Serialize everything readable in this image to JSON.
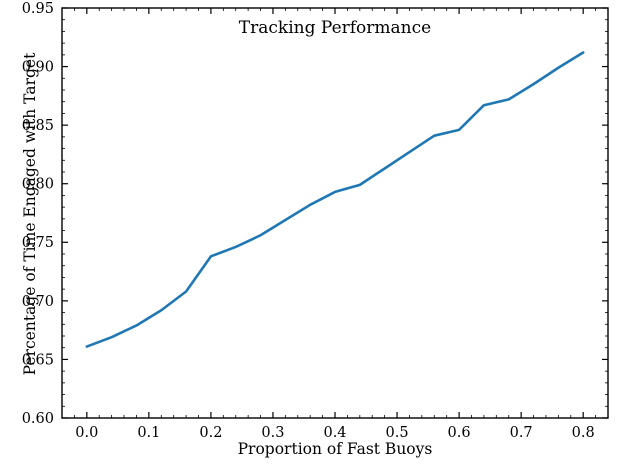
{
  "chart_data": {
    "type": "line",
    "title": "Tracking Performance",
    "xlabel": "Proportion of Fast Buoys",
    "ylabel": "Percentage of Time Engaged with Target",
    "x": [
      0.0,
      0.04,
      0.08,
      0.12,
      0.16,
      0.2,
      0.24,
      0.28,
      0.32,
      0.36,
      0.4,
      0.44,
      0.48,
      0.52,
      0.56,
      0.6,
      0.64,
      0.68,
      0.72,
      0.76,
      0.8
    ],
    "y": [
      0.661,
      0.669,
      0.679,
      0.692,
      0.708,
      0.738,
      0.746,
      0.756,
      0.769,
      0.782,
      0.793,
      0.799,
      0.813,
      0.827,
      0.841,
      0.846,
      0.867,
      0.872,
      0.885,
      0.899,
      0.912
    ],
    "x_ticks": [
      0.0,
      0.1,
      0.2,
      0.3,
      0.4,
      0.5,
      0.6,
      0.7,
      0.8
    ],
    "y_ticks": [
      0.6,
      0.65,
      0.7,
      0.75,
      0.8,
      0.85,
      0.9,
      0.95
    ],
    "xlim": [
      -0.04,
      0.84
    ],
    "ylim": [
      0.6,
      0.95
    ],
    "line_color": "#1f77b4",
    "line_width": 2.6,
    "axis_color": "#000000",
    "grid": "off",
    "legend": "none"
  }
}
